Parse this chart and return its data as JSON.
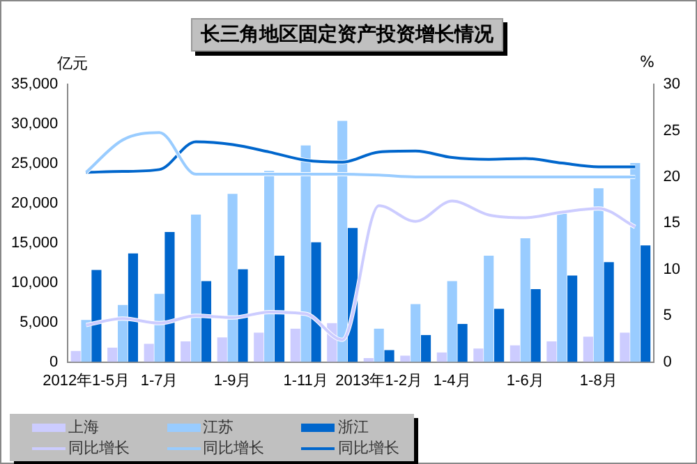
{
  "chart_data": {
    "type": "bar",
    "title": "长三角地区固定资产投资增长情况",
    "ylabel": "亿元",
    "y2label": "%",
    "categories": [
      "2012年1-5月",
      null,
      "1-7月",
      null,
      "1-9月",
      null,
      "1-11月",
      null,
      "2013年1-2月",
      null,
      "1-4月",
      null,
      "1-6月",
      null,
      "1-8月",
      null
    ],
    "series": [
      {
        "name": "上海",
        "color": "#ccccff",
        "values": [
          1400,
          1800,
          2300,
          2600,
          3100,
          3700,
          4200,
          4900,
          500,
          800,
          1200,
          1700,
          2100,
          2600,
          3200,
          3700
        ]
      },
      {
        "name": "江苏",
        "color": "#99ccff",
        "values": [
          5300,
          7200,
          8600,
          18600,
          21200,
          24100,
          27300,
          30400,
          4200,
          7300,
          10200,
          13400,
          15600,
          18700,
          21900,
          25100
        ]
      },
      {
        "name": "浙江",
        "color": "#0066cc",
        "values": [
          11600,
          13700,
          16400,
          10200,
          11700,
          13400,
          15100,
          16900,
          1500,
          3400,
          4800,
          6700,
          9200,
          10900,
          12600,
          14700
        ]
      },
      {
        "name": "同比增长",
        "type": "line",
        "axis": "y2",
        "color": "#ccccff",
        "values": [
          4.0,
          4.7,
          4.2,
          5.0,
          4.8,
          5.4,
          5.2,
          2.4,
          16.9,
          15.2,
          17.4,
          15.9,
          15.6,
          16.2,
          16.6,
          14.6
        ]
      },
      {
        "name": "同比增长",
        "type": "line",
        "axis": "y2",
        "color": "#99ccff",
        "values": [
          20.5,
          24.0,
          24.8,
          20.3,
          20.3,
          20.3,
          20.3,
          20.3,
          20.2,
          20.0,
          20.0,
          20.0,
          20.0,
          20.0,
          20.0,
          20.0
        ]
      },
      {
        "name": "同比增长",
        "type": "line",
        "axis": "y2",
        "color": "#0066cc",
        "values": [
          20.5,
          20.6,
          20.8,
          23.8,
          23.5,
          22.7,
          21.8,
          21.6,
          22.7,
          22.8,
          22.1,
          21.9,
          22.0,
          21.5,
          21.1,
          21.1
        ]
      }
    ],
    "ylim": [
      0,
      35000
    ],
    "yticks": [
      0,
      {
        "value": 5000,
        "label": "5,000"
      },
      {
        "value": 10000,
        "label": "10,000"
      },
      {
        "value": 15000,
        "label": "15,000"
      },
      {
        "value": 20000,
        "label": "20,000"
      },
      {
        "value": 25000,
        "label": "25,000"
      },
      {
        "value": 30000,
        "label": "30,000"
      },
      {
        "value": 35000,
        "label": "35,000"
      }
    ],
    "y2lim": [
      0,
      30
    ],
    "y2ticks": [
      0,
      5,
      10,
      15,
      20,
      25,
      30
    ],
    "grid": false,
    "legend": "bottom",
    "marker": "none",
    "line_style": "solid"
  }
}
